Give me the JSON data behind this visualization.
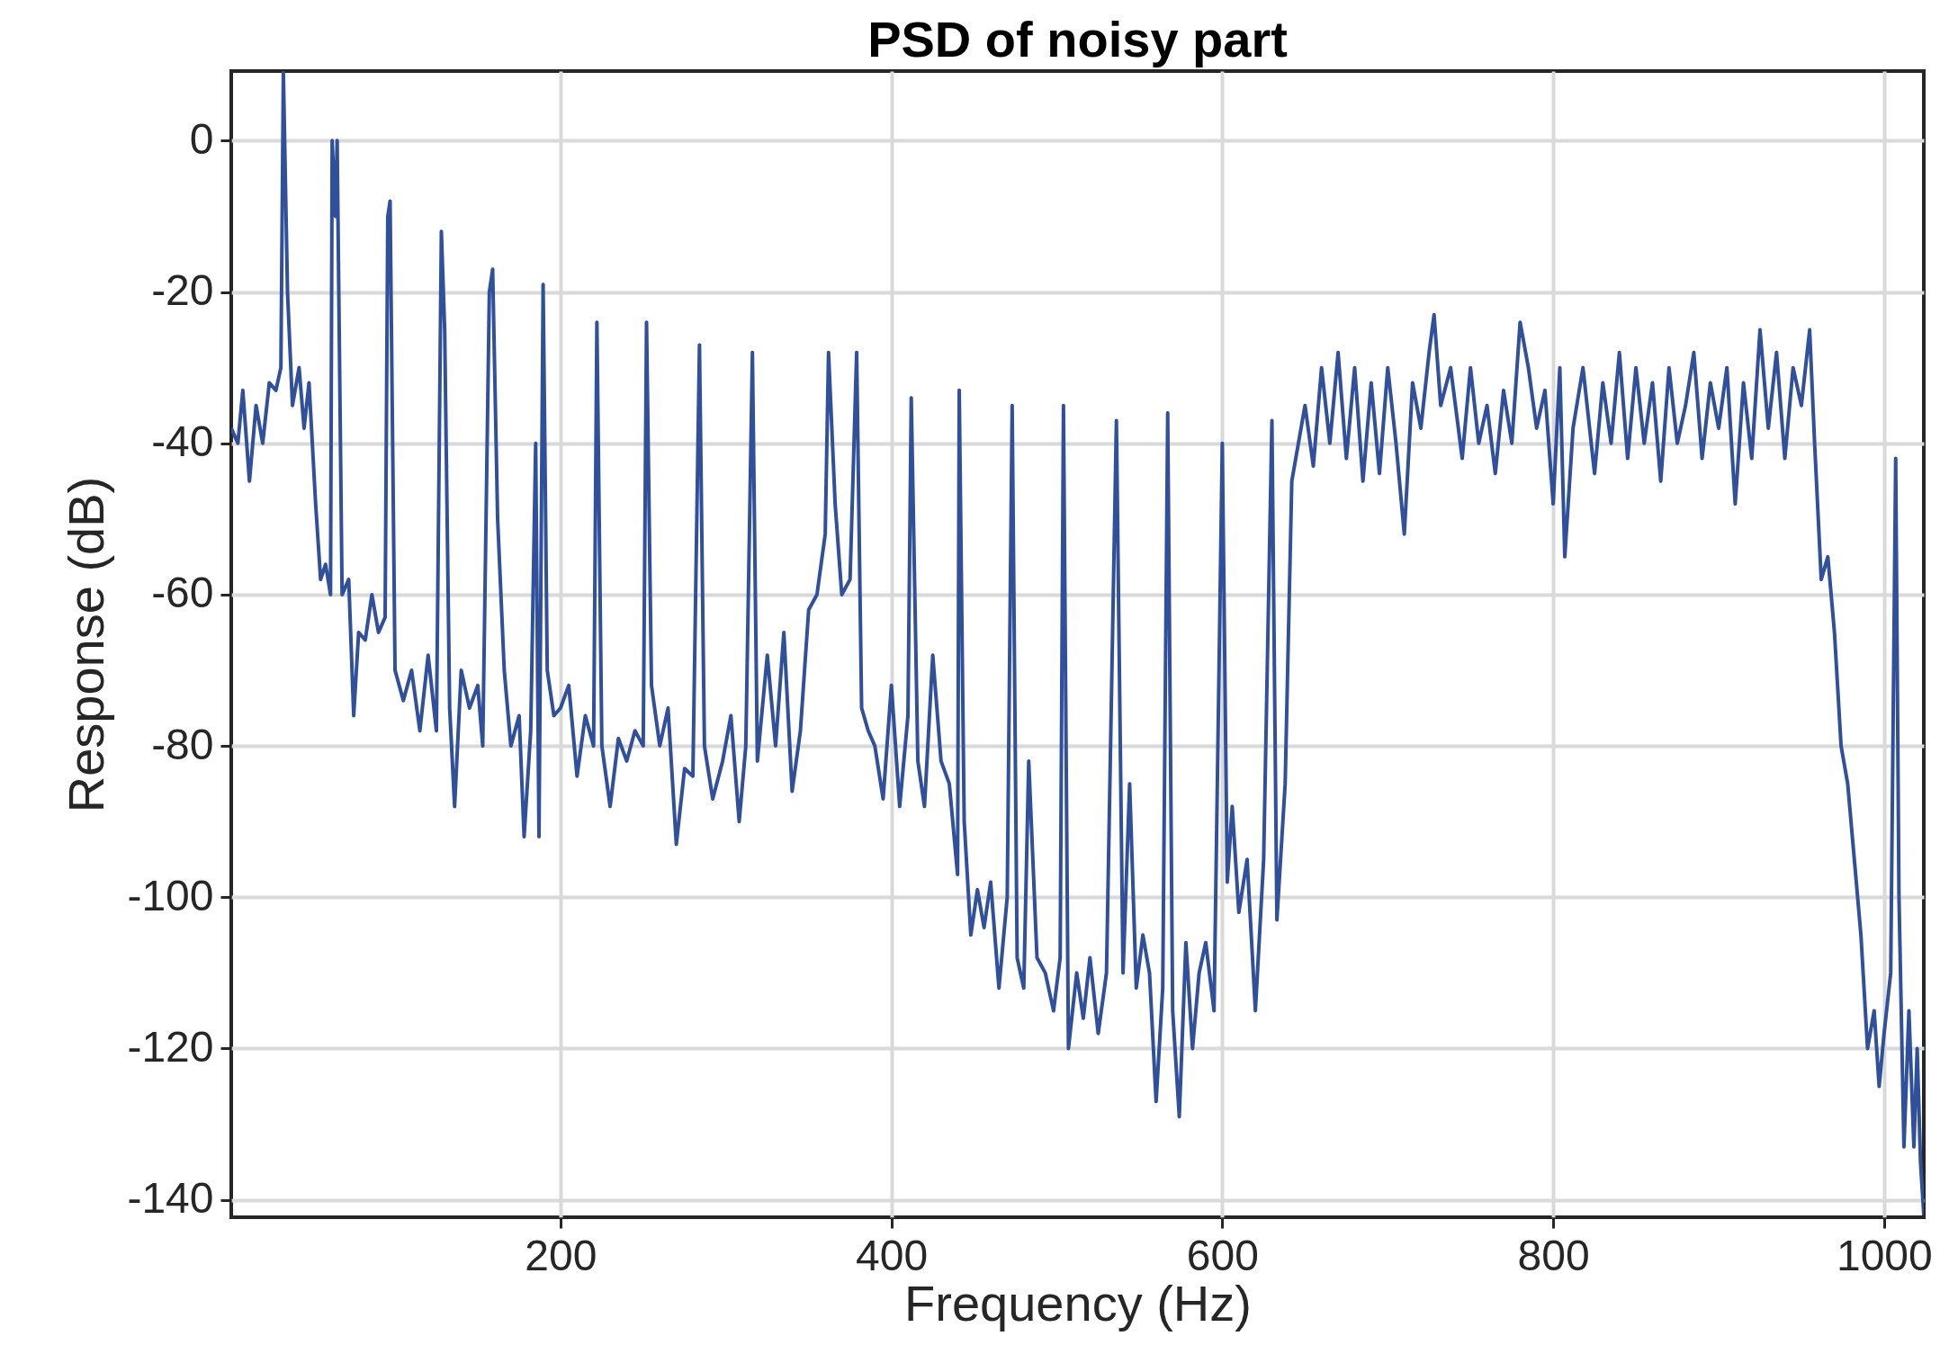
{
  "chart_data": {
    "type": "line",
    "title": "PSD of noisy part",
    "xlabel": "Frequency (Hz)",
    "ylabel": "Response (dB)",
    "xlim": [
      1,
      1024
    ],
    "ylim": [
      -142.3,
      9.2
    ],
    "xticks": [
      200,
      400,
      600,
      800,
      1000
    ],
    "yticks": [
      -140,
      -120,
      -100,
      -80,
      -60,
      -40,
      -20,
      0
    ],
    "grid": true,
    "x": [
      1,
      5,
      8,
      12,
      16,
      20,
      24,
      28,
      31,
      32.5,
      35,
      38,
      42,
      45,
      48,
      52,
      55,
      58,
      61,
      62,
      64,
      65,
      68,
      72,
      75,
      78,
      82,
      86,
      90,
      94,
      95.6,
      97,
      100,
      105,
      110,
      115,
      120,
      125,
      128,
      130,
      133,
      136,
      140,
      145,
      150,
      153,
      157,
      159,
      162,
      166,
      170,
      175,
      178,
      182,
      185,
      187,
      189.5,
      192,
      196,
      200,
      205,
      210,
      215,
      220,
      222,
      225,
      230,
      235,
      240,
      245,
      250,
      252,
      255,
      260,
      265,
      270,
      275,
      280,
      284,
      287,
      292,
      298,
      303,
      308,
      312,
      316,
      319,
      325,
      330,
      335,
      340,
      345,
      350,
      355,
      360,
      362,
      366,
      370,
      375,
      379,
      382,
      386,
      390,
      395,
      400,
      405,
      410,
      412,
      416,
      420,
      425,
      430,
      435,
      440,
      441,
      444,
      448,
      452,
      456,
      460,
      465,
      470,
      473,
      476,
      480,
      483,
      488,
      493,
      498,
      502,
      504,
      507,
      512,
      516,
      520,
      525,
      530,
      536,
      540,
      544,
      548,
      552,
      556,
      560,
      564,
      567,
      570,
      574,
      578,
      582,
      586,
      590,
      595,
      600,
      603,
      606,
      610,
      615,
      620,
      625,
      630,
      633,
      638,
      642,
      646,
      650,
      655,
      660,
      665,
      670,
      675,
      680,
      685,
      690,
      695,
      700,
      705,
      710,
      715,
      720,
      725,
      728,
      732,
      738,
      745,
      750,
      755,
      760,
      765,
      770,
      775,
      780,
      785,
      790,
      795,
      800,
      804,
      807,
      812,
      818,
      825,
      830,
      835,
      840,
      845,
      850,
      855,
      860,
      865,
      870,
      875,
      880,
      885,
      890,
      895,
      900,
      905,
      910,
      915,
      920,
      925,
      930,
      935,
      940,
      945,
      950,
      955,
      958,
      962,
      966,
      970,
      974,
      978,
      982,
      986,
      990,
      994,
      997,
      1000,
      1004,
      1007,
      1009,
      1012,
      1015,
      1018,
      1020,
      1022,
      1024
    ],
    "series": [
      {
        "color": "#31509c",
        "values": [
          -38,
          -40,
          -33,
          -45,
          -35,
          -40,
          -32,
          -33,
          -30,
          9,
          -20,
          -35,
          -30,
          -38,
          -32,
          -48,
          -58,
          -56,
          -60,
          0,
          -10,
          0,
          -60,
          -58,
          -76,
          -65,
          -66,
          -60,
          -65,
          -63,
          -10,
          -8,
          -70,
          -74,
          -70,
          -78,
          -68,
          -78,
          -12,
          -25,
          -75,
          -88,
          -70,
          -75,
          -72,
          -80,
          -20,
          -17,
          -50,
          -70,
          -80,
          -76,
          -92,
          -78,
          -40,
          -92,
          -19,
          -70,
          -76,
          -75,
          -72,
          -84,
          -76,
          -80,
          -24,
          -80,
          -88,
          -79,
          -82,
          -78,
          -80,
          -24,
          -72,
          -80,
          -75,
          -93,
          -83,
          -84,
          -27,
          -80,
          -87,
          -82,
          -76,
          -90,
          -80,
          -28,
          -82,
          -68,
          -80,
          -65,
          -86,
          -78,
          -62,
          -60,
          -52,
          -28,
          -48,
          -60,
          -58,
          -28,
          -75,
          -78,
          -80,
          -87,
          -72,
          -88,
          -76,
          -34,
          -82,
          -88,
          -68,
          -82,
          -85,
          -97,
          -33,
          -90,
          -105,
          -99,
          -104,
          -98,
          -112,
          -100,
          -35,
          -108,
          -112,
          -82,
          -108,
          -110,
          -115,
          -108,
          -35,
          -120,
          -110,
          -116,
          -108,
          -118,
          -110,
          -37,
          -110,
          -85,
          -112,
          -105,
          -110,
          -127,
          -112,
          -36,
          -115,
          -129,
          -106,
          -120,
          -110,
          -106,
          -115,
          -40,
          -98,
          -88,
          -102,
          -95,
          -115,
          -95,
          -37,
          -103,
          -85,
          -45,
          -40,
          -35,
          -43,
          -30,
          -40,
          -28,
          -42,
          -30,
          -45,
          -32,
          -44,
          -30,
          -40,
          -52,
          -32,
          -38,
          -28,
          -23,
          -35,
          -30,
          -42,
          -30,
          -40,
          -35,
          -44,
          -33,
          -40,
          -24,
          -30,
          -38,
          -33,
          -48,
          -30,
          -55,
          -38,
          -30,
          -44,
          -32,
          -40,
          -28,
          -42,
          -30,
          -40,
          -32,
          -45,
          -30,
          -40,
          -35,
          -28,
          -42,
          -32,
          -38,
          -30,
          -48,
          -32,
          -42,
          -25,
          -38,
          -28,
          -42,
          -30,
          -35,
          -25,
          -40,
          -58,
          -55,
          -65,
          -80,
          -85,
          -95,
          -105,
          -120,
          -115,
          -125,
          -118,
          -110,
          -42,
          -100,
          -133,
          -115,
          -133,
          -120,
          -135,
          -142
        ]
      }
    ]
  }
}
